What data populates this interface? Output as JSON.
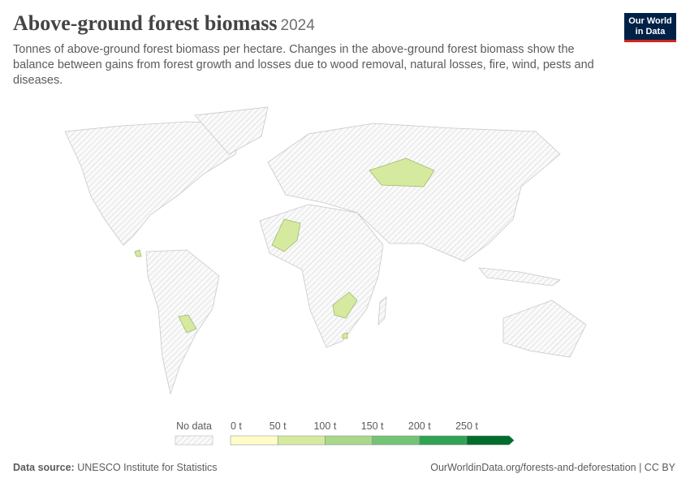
{
  "header": {
    "title": "Above-ground forest biomass",
    "year": "2024",
    "subtitle": "Tonnes of above-ground forest biomass per hectare. Changes in the above-ground forest biomass show the balance between gains from forest growth and losses due to wood removal, natural losses, fire, wind, pests and diseases.",
    "logo": [
      "Our World",
      "in Data"
    ]
  },
  "legend": {
    "no_data": "No data",
    "labels": [
      "0 t",
      "50 t",
      "100 t",
      "150 t",
      "200 t",
      "250 t"
    ],
    "colors": [
      "#fefdc8",
      "#d6ea9f",
      "#a9d88a",
      "#74c476",
      "#31a354",
      "#006d2c"
    ]
  },
  "footer": {
    "source_label": "Data source:",
    "source": "UNESCO Institute for Statistics",
    "url": "OurWorldinData.org/forests-and-deforestation | CC BY"
  }
}
